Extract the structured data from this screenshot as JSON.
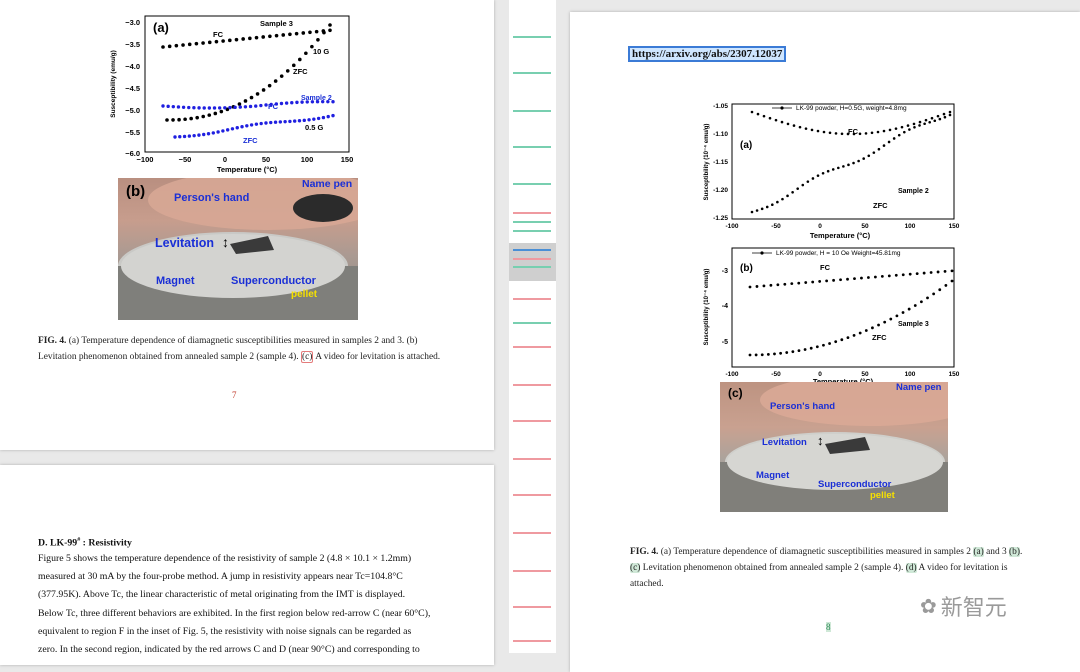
{
  "left_page_top": {
    "fig_a": {
      "panel": "(a)",
      "sample3": "Sample 3",
      "sample2": "Sample 2",
      "fc": "FC",
      "zfc": "ZFC",
      "fc2": "FC",
      "zfc2": "ZFC",
      "field1": "10 G",
      "field2": "0.5 G",
      "ylabel": "Susceptibility (emu/g)",
      "xlabel": "Temperature (°C)",
      "yticks": [
        "−3.0",
        "−3.5",
        "−4.0",
        "−4.5",
        "−5.0",
        "−5.5",
        "−6.0"
      ],
      "xticks": [
        "−100",
        "−50",
        "0",
        "50",
        "100",
        "150"
      ]
    },
    "fig_b": {
      "panel": "(b)",
      "name_pen": "Name pen",
      "hand": "Person's hand",
      "levitation": "Levitation",
      "magnet": "Magnet",
      "superconductor": "Superconductor",
      "pellet": "pellet"
    },
    "caption_label": "FIG. 4.",
    "caption_line1": "(a) Temperature dependence of diamagnetic susceptibilities measured in samples 2 and 3. (b)",
    "caption_line2": "Levitation phenomenon obtained from annealed sample 2 (sample 4).",
    "caption_c": "(c)",
    "caption_tail": "A video for levitation is attached.",
    "page_number": "7"
  },
  "left_page_bottom": {
    "section_title": "D. LK-99",
    "section_sup": "#",
    "section_rest": " : Resistivity",
    "paragraph_lines": [
      "Figure 5 shows the temperature dependence of the resistivity of sample 2 (4.8 × 10.1 × 1.2mm)",
      "measured at 30 mA by the four-probe method. A jump in resistivity appears near Tc=104.8°C",
      "(377.95K). Above Tc, the linear characteristic of metal originating from the IMT is displayed.",
      "Below Tc, three different behaviors are exhibited. In the first region below red-arrow C (near 60°C),",
      "equivalent to region F in the inset of Fig. 5, the resistivity with noise signals can be regarded as",
      "zero. In the second region, indicated by the red arrows C and D (near 90°C) and corresponding to"
    ]
  },
  "right_page": {
    "url": "https://arxiv.org/abs/2307.12037",
    "fig_a": {
      "panel": "(a)",
      "legend": "LK-99 powder, H=0.5G, weight=4.8mg",
      "fc": "FC",
      "zfc": "ZFC",
      "sample": "Sample 2",
      "ylabel": "Susceptibility (10⁻⁴ emu/g)",
      "yticks": [
        "-1.05",
        "-1.10",
        "-1.15",
        "-1.20",
        "-1.25"
      ],
      "xticks": [
        "-100",
        "-50",
        "0",
        "50",
        "100",
        "150"
      ],
      "xlabel": "Temperature (°C)"
    },
    "fig_b": {
      "panel": "(b)",
      "legend": "LK-99 powder, H = 10 Oe  Weight=45.81mg",
      "fc": "FC",
      "zfc": "ZFC",
      "sample": "Sample 3",
      "ylabel": "Susceptibility (10⁻⁴ emu/g)",
      "yticks": [
        "-3",
        "-4",
        "-5"
      ],
      "xticks": [
        "-100",
        "-50",
        "0",
        "50",
        "100",
        "150"
      ],
      "xlabel": "Temperature (°C)"
    },
    "fig_c": {
      "panel": "(c)",
      "name_pen": "Name pen",
      "hand": "Person's hand",
      "levitation": "Levitation",
      "magnet": "Magnet",
      "superconductor": "Superconductor",
      "pellet": "pellet"
    },
    "caption_label": "FIG. 4.",
    "caption_line1a": "(a) Temperature dependence of diamagnetic susceptibilities measured in samples 2",
    "caption_a": "(a)",
    "caption_and": "and 3",
    "caption_b": "(b)",
    "caption_c": "(c)",
    "caption_line2": "Levitation phenomenon obtained from annealed sample 2 (sample 4).",
    "caption_d": "(d)",
    "caption_line2b": "A video for levitation is",
    "caption_line3": "attached.",
    "page_number": "8",
    "watermark": "新智元"
  },
  "colors": {
    "blue_series": "#1f1fe0",
    "text_blue": "#1a2fd6",
    "yellow": "#f5e000",
    "url_highlight": "#cfe6ff",
    "compare_green": "#78cfb0",
    "compare_red": "#ef9aa0"
  }
}
